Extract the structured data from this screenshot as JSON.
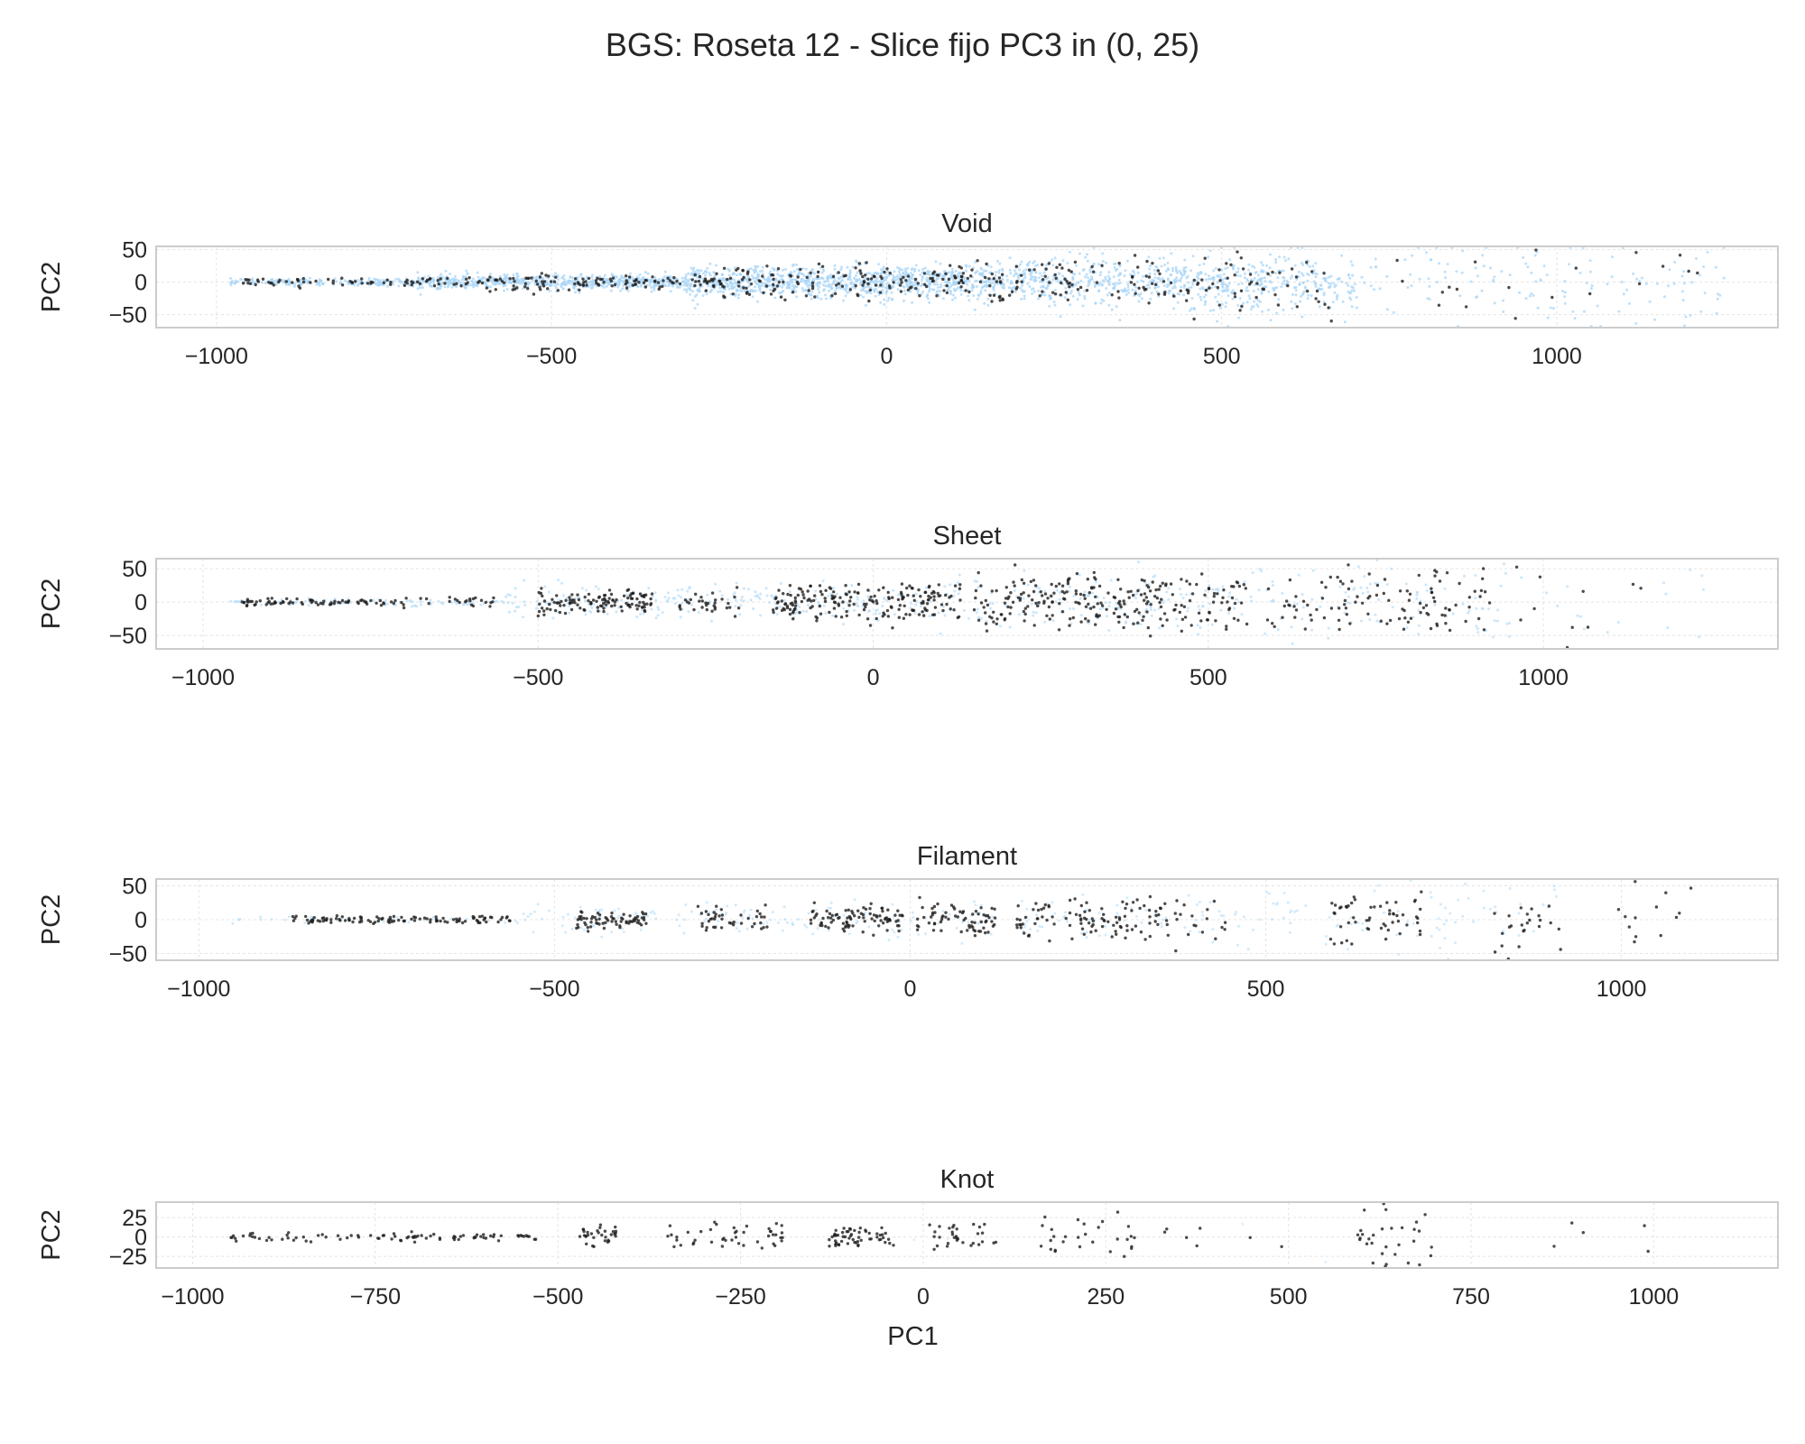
{
  "figure": {
    "suptitle": "BGS: Roseta 12 - Slice fijo PC3 in (0, 25)",
    "colors": {
      "background": "#d6ecfb",
      "highlight": "#1e1e1e",
      "spine": "#cccccc",
      "grid": "#e4e4e4"
    }
  },
  "chart_data": [
    {
      "type": "scatter",
      "title": "Void",
      "xlabel": "",
      "ylabel": "PC2",
      "xlim": [
        -1090,
        1330
      ],
      "ylim": [
        -70,
        55
      ],
      "xticks": [
        -1000,
        -500,
        0,
        500,
        1000
      ],
      "xtick_labels": [
        "−1000",
        "−500",
        "0",
        "500",
        "1000"
      ],
      "yticks": [
        50,
        0,
        -50
      ],
      "ytick_labels": [
        "50",
        "0",
        "−50"
      ],
      "grid": true,
      "series": [
        {
          "role": "background",
          "color": "#aad6f7",
          "density": "heavy",
          "clusters": [
            [
              -980,
              -700,
              5,
              0.3,
              1
            ],
            [
              -700,
              -300,
              10,
              0.7,
              1
            ],
            [
              -300,
              120,
              22,
              1.0,
              1
            ],
            [
              120,
              450,
              32,
              0.7,
              1
            ],
            [
              450,
              700,
              42,
              0.6,
              1
            ],
            [
              700,
              1250,
              55,
              0.12,
              1
            ]
          ]
        },
        {
          "role": "highlight",
          "color": "#1e1e1e",
          "clusters": [
            [
              -960,
              -600,
              6,
              0.3,
              2
            ],
            [
              -600,
              -250,
              12,
              0.5,
              2
            ],
            [
              -250,
              120,
              22,
              0.6,
              2
            ],
            [
              120,
              450,
              32,
              0.45,
              2
            ],
            [
              450,
              650,
              40,
              0.35,
              2
            ],
            [
              650,
              1220,
              50,
              0.06,
              2
            ]
          ]
        }
      ]
    },
    {
      "type": "scatter",
      "title": "Sheet",
      "xlabel": "",
      "ylabel": "PC2",
      "xlim": [
        -1070,
        1350
      ],
      "ylim": [
        -70,
        65
      ],
      "xticks": [
        -1000,
        -500,
        0,
        500,
        1000
      ],
      "xtick_labels": [
        "−1000",
        "−500",
        "0",
        "500",
        "1000"
      ],
      "yticks": [
        50,
        0,
        -50
      ],
      "ytick_labels": [
        "50",
        "0",
        "−50"
      ],
      "grid": true,
      "series": [
        {
          "role": "background",
          "color": "#b9def8",
          "density": "light",
          "clusters": [
            [
              -960,
              -550,
              5,
              0.25,
              1
            ],
            [
              -550,
              100,
              22,
              0.4,
              1
            ],
            [
              100,
              560,
              38,
              0.4,
              1
            ],
            [
              560,
              950,
              45,
              0.3,
              1
            ],
            [
              950,
              1240,
              55,
              0.06,
              1
            ]
          ]
        },
        {
          "role": "highlight",
          "color": "#1e1e1e",
          "clusters": [
            [
              -950,
              -740,
              5,
              0.45,
              2
            ],
            [
              -740,
              -550,
              7,
              0.25,
              2
            ],
            [
              -500,
              -330,
              15,
              1.0,
              2
            ],
            [
              -290,
              -200,
              18,
              0.5,
              2
            ],
            [
              -150,
              130,
              25,
              1.0,
              2
            ],
            [
              150,
              560,
              36,
              0.85,
              2
            ],
            [
              580,
              920,
              45,
              0.45,
              2
            ],
            [
              950,
              1240,
              50,
              0.05,
              2
            ]
          ]
        }
      ]
    },
    {
      "type": "scatter",
      "title": "Filament",
      "xlabel": "",
      "ylabel": "PC2",
      "xlim": [
        -1060,
        1220
      ],
      "ylim": [
        -60,
        60
      ],
      "xticks": [
        -1000,
        -500,
        0,
        500,
        1000
      ],
      "xtick_labels": [
        "−1000",
        "−500",
        "0",
        "500",
        "1000"
      ],
      "yticks": [
        50,
        0,
        -50
      ],
      "ytick_labels": [
        "50",
        "0",
        "−50"
      ],
      "grid": true,
      "series": [
        {
          "role": "background",
          "color": "#c3e3f9",
          "density": "light",
          "clusters": [
            [
              -960,
              -550,
              5,
              0.1,
              1
            ],
            [
              -550,
              120,
              22,
              0.25,
              1
            ],
            [
              150,
              560,
              34,
              0.25,
              1
            ],
            [
              580,
              920,
              45,
              0.2,
              1
            ]
          ]
        },
        {
          "role": "highlight",
          "color": "#1e1e1e",
          "clusters": [
            [
              -945,
              -940,
              3,
              0.05,
              2
            ],
            [
              -870,
              -560,
              5,
              0.5,
              2
            ],
            [
              -470,
              -370,
              12,
              1.0,
              2
            ],
            [
              -300,
              -200,
              15,
              0.6,
              2
            ],
            [
              -140,
              -10,
              18,
              1.0,
              2
            ],
            [
              10,
              120,
              20,
              0.9,
              2
            ],
            [
              150,
              350,
              30,
              0.7,
              2
            ],
            [
              350,
              450,
              30,
              0.35,
              2
            ],
            [
              590,
              720,
              38,
              0.6,
              2
            ],
            [
              820,
              920,
              40,
              0.35,
              2
            ],
            [
              990,
              1110,
              50,
              0.15,
              2
            ]
          ]
        }
      ]
    },
    {
      "type": "scatter",
      "title": "Knot",
      "xlabel": "PC1",
      "ylabel": "PC2",
      "xlim": [
        -1050,
        1170
      ],
      "ylim": [
        -40,
        45
      ],
      "xticks": [
        -1000,
        -750,
        -500,
        -250,
        0,
        250,
        500,
        750,
        1000
      ],
      "xtick_labels": [
        "−1000",
        "−750",
        "−500",
        "−250",
        "0",
        "250",
        "500",
        "750",
        "1000"
      ],
      "yticks": [
        25,
        0,
        -25
      ],
      "ytick_labels": [
        "25",
        "0",
        "−25"
      ],
      "grid": true,
      "series": [
        {
          "role": "background",
          "color": "#d3ebfb",
          "density": "sparse",
          "clusters": [
            [
              -950,
              -400,
              5,
              0.03,
              1
            ],
            [
              -400,
              300,
              15,
              0.04,
              1
            ],
            [
              300,
              1100,
              30,
              0.03,
              1
            ]
          ]
        },
        {
          "role": "highlight",
          "color": "#1e1e1e",
          "clusters": [
            [
              -950,
              -530,
              5,
              0.3,
              2
            ],
            [
              -470,
              -420,
              12,
              0.9,
              2
            ],
            [
              -350,
              -190,
              15,
              0.4,
              2
            ],
            [
              -130,
              -40,
              12,
              0.9,
              2
            ],
            [
              0,
              100,
              18,
              0.45,
              2
            ],
            [
              160,
              300,
              25,
              0.3,
              2
            ],
            [
              330,
              530,
              35,
              0.05,
              2
            ],
            [
              590,
              700,
              38,
              0.4,
              2
            ],
            [
              830,
              1080,
              38,
              0.03,
              2
            ]
          ]
        }
      ]
    }
  ]
}
